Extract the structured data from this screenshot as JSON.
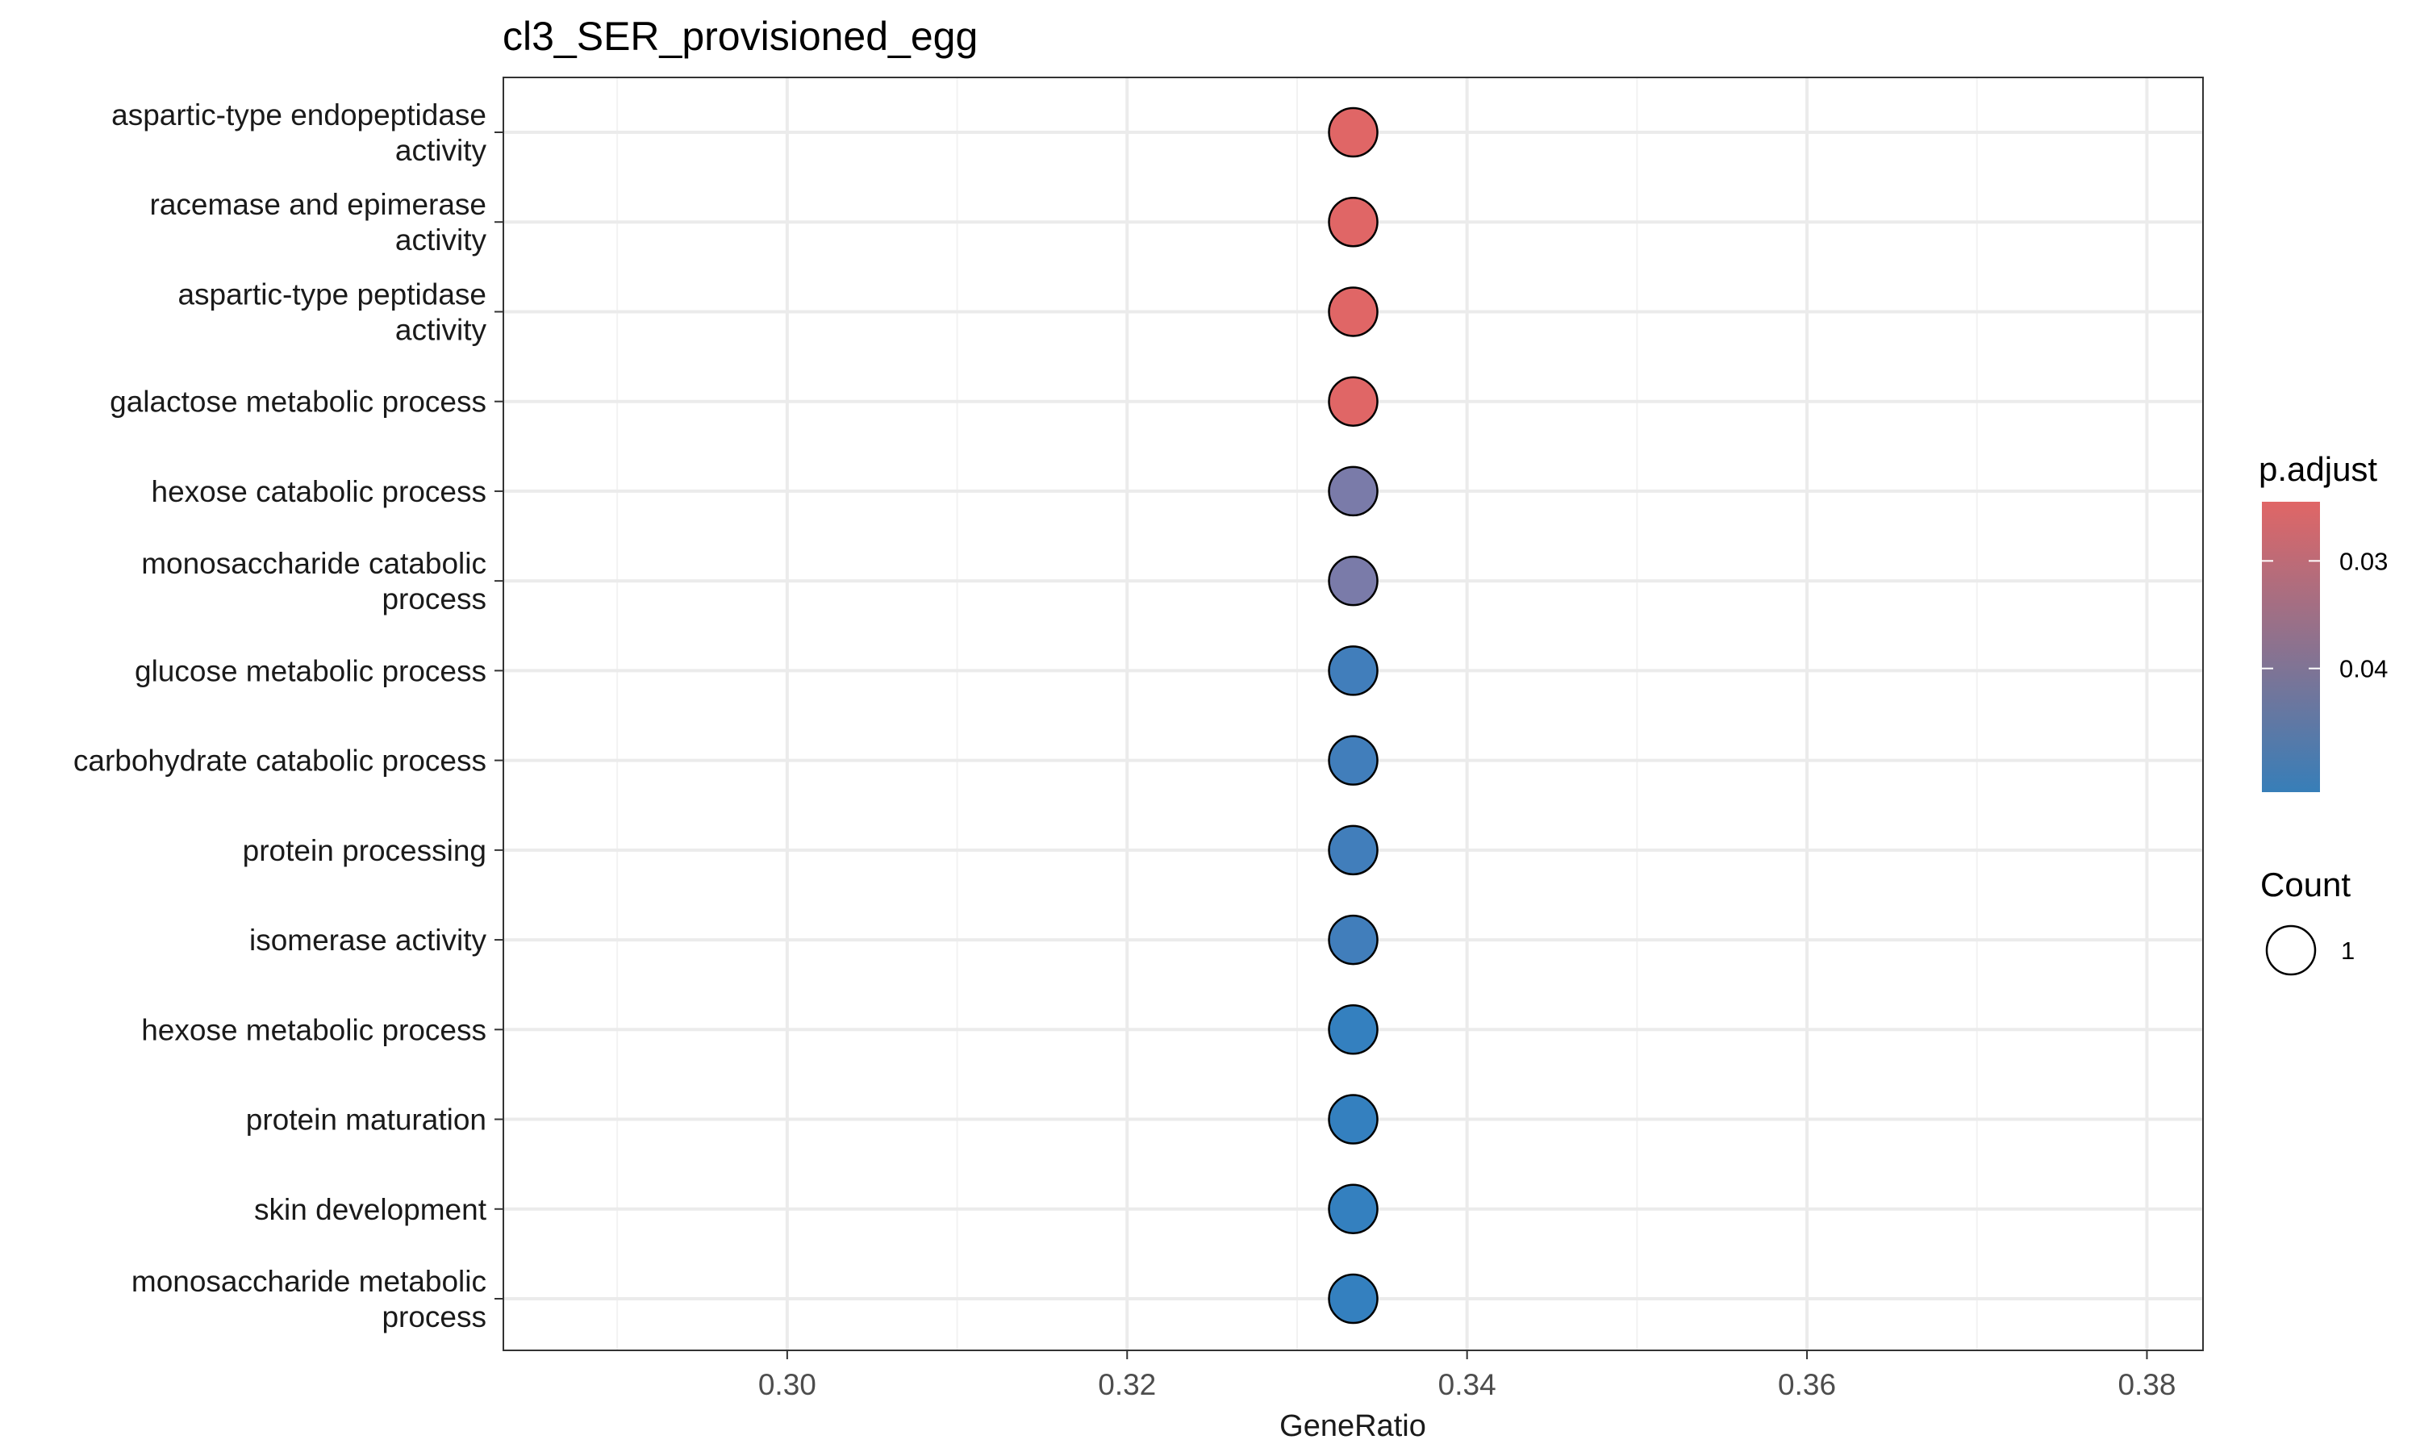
{
  "chart_data": {
    "type": "scatter",
    "title": "cl3_SER_provisioned_egg",
    "xlabel": "GeneRatio",
    "ylabel": "",
    "xlim": [
      0.2833,
      0.3833
    ],
    "x_ticks": [
      0.3,
      0.32,
      0.34,
      0.36,
      0.38
    ],
    "x_tick_labels": [
      "0.30",
      "0.32",
      "0.34",
      "0.36",
      "0.38"
    ],
    "grid": true,
    "categories": [
      [
        "aspartic-type endopeptidase",
        "activity"
      ],
      [
        "racemase and epimerase",
        "activity"
      ],
      [
        "aspartic-type peptidase",
        "activity"
      ],
      [
        "galactose metabolic process"
      ],
      [
        "hexose catabolic process"
      ],
      [
        "monosaccharide catabolic",
        "process"
      ],
      [
        "glucose metabolic process"
      ],
      [
        "carbohydrate catabolic process"
      ],
      [
        "protein processing"
      ],
      [
        "isomerase activity"
      ],
      [
        "hexose metabolic process"
      ],
      [
        "protein maturation"
      ],
      [
        "skin development"
      ],
      [
        "monosaccharide metabolic",
        "process"
      ]
    ],
    "points": [
      {
        "gene_ratio": 0.3333,
        "count": 1,
        "color": "#E06666"
      },
      {
        "gene_ratio": 0.3333,
        "count": 1,
        "color": "#E06666"
      },
      {
        "gene_ratio": 0.3333,
        "count": 1,
        "color": "#E06666"
      },
      {
        "gene_ratio": 0.3333,
        "count": 1,
        "color": "#E06666"
      },
      {
        "gene_ratio": 0.3333,
        "count": 1,
        "color": "#7A7BA9"
      },
      {
        "gene_ratio": 0.3333,
        "count": 1,
        "color": "#7A7BA9"
      },
      {
        "gene_ratio": 0.3333,
        "count": 1,
        "color": "#417EBB"
      },
      {
        "gene_ratio": 0.3333,
        "count": 1,
        "color": "#417EBB"
      },
      {
        "gene_ratio": 0.3333,
        "count": 1,
        "color": "#417EBB"
      },
      {
        "gene_ratio": 0.3333,
        "count": 1,
        "color": "#417EBB"
      },
      {
        "gene_ratio": 0.3333,
        "count": 1,
        "color": "#3480BF"
      },
      {
        "gene_ratio": 0.3333,
        "count": 1,
        "color": "#3480BF"
      },
      {
        "gene_ratio": 0.3333,
        "count": 1,
        "color": "#3480BF"
      },
      {
        "gene_ratio": 0.3333,
        "count": 1,
        "color": "#3480BF"
      }
    ],
    "legend": {
      "placement": "right",
      "color": {
        "title": "p.adjust",
        "colors": [
          "#E06666",
          "#377EB8"
        ],
        "tick_values": [
          0.03,
          0.04
        ],
        "tick_labels": [
          "0.03",
          "0.04"
        ],
        "range": [
          0.0245,
          0.0515
        ]
      },
      "size": {
        "title": "Count",
        "entries": [
          {
            "label": "1",
            "value": 1
          }
        ]
      }
    }
  }
}
